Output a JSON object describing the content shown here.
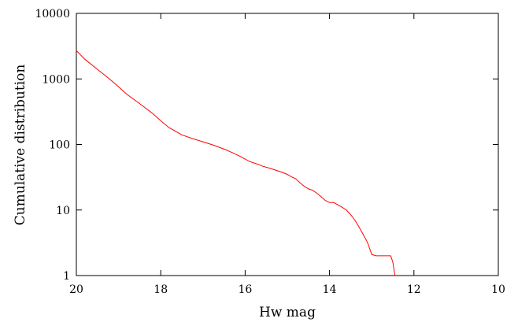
{
  "chart_data": {
    "type": "line",
    "xlabel": "Hw mag",
    "ylabel": "Cumulative distribution",
    "xlim": [
      20,
      10
    ],
    "ylim": [
      1,
      10000
    ],
    "yscale": "log",
    "x_ticks": [
      20,
      18,
      16,
      14,
      12,
      10
    ],
    "x_tick_labels": [
      "20",
      "18",
      "16",
      "14",
      "12",
      "10"
    ],
    "y_ticks": [
      1,
      10,
      100,
      1000,
      10000
    ],
    "y_tick_labels": [
      "1",
      "10",
      "100",
      "1000",
      "10000"
    ],
    "grid": false,
    "series": [
      {
        "color": "#ff0000",
        "x": [
          20.0,
          19.8,
          19.5,
          19.2,
          19.0,
          18.8,
          18.5,
          18.2,
          18.0,
          17.8,
          17.5,
          17.2,
          17.0,
          16.8,
          16.7,
          16.5,
          16.3,
          16.1,
          16.0,
          15.9,
          15.7,
          15.6,
          15.4,
          15.2,
          15.1,
          15.0,
          14.9,
          14.8,
          14.7,
          14.6,
          14.5,
          14.4,
          14.3,
          14.25,
          14.2,
          14.1,
          14.0,
          13.9,
          13.8,
          13.7,
          13.6,
          13.5,
          13.4,
          13.3,
          13.2,
          13.1,
          13.05,
          13.0,
          12.9,
          12.8,
          12.7,
          12.6,
          12.55,
          12.5,
          12.45
        ],
        "y": [
          2700,
          2000,
          1400,
          980,
          760,
          580,
          420,
          300,
          230,
          180,
          140,
          120,
          110,
          100,
          95,
          85,
          75,
          65,
          60,
          55,
          50,
          47,
          43,
          39,
          37,
          35,
          32,
          30,
          26,
          23,
          21,
          20,
          18,
          17,
          16,
          14,
          13,
          13,
          12,
          11,
          10,
          8.5,
          7,
          5.5,
          4.2,
          3.2,
          2.6,
          2.1,
          2,
          2,
          2,
          2,
          2,
          1.6,
          1
        ]
      }
    ]
  }
}
